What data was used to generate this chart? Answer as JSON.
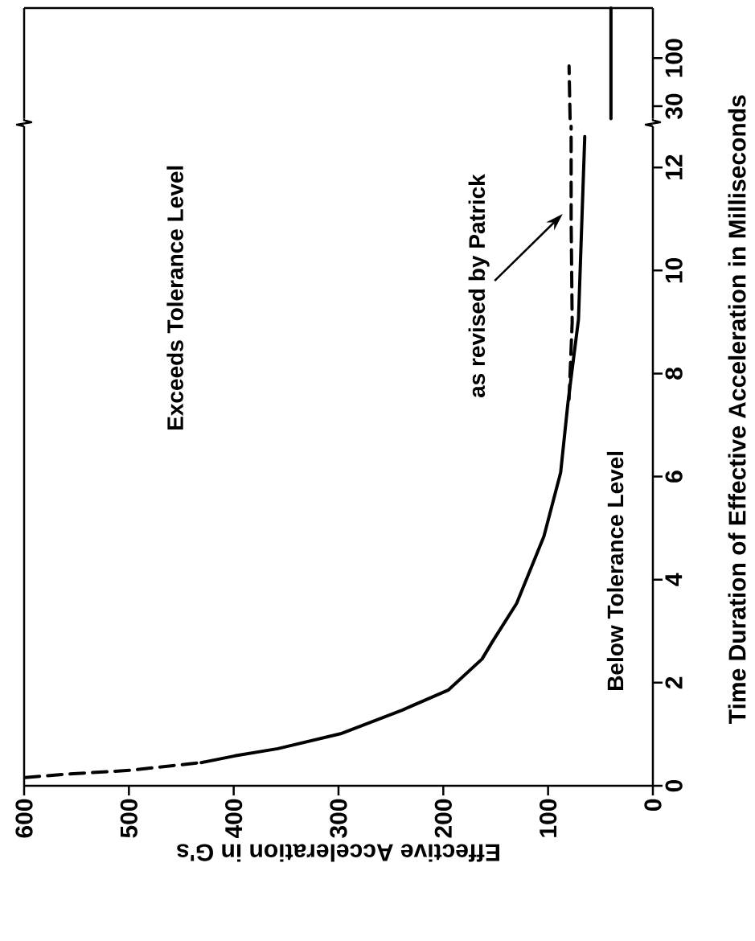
{
  "chart_data": [
    {
      "type": "line",
      "xlabel": "Effective Acceleration in G's",
      "ylabel": "Time Duration of Effective Acceleration in Milliseconds",
      "xlim": [
        600,
        0
      ],
      "xticks": [
        600,
        500,
        400,
        300,
        200,
        100,
        0
      ],
      "ylim": [
        0,
        12.8
      ],
      "yticks": [
        0,
        2,
        4,
        6,
        8,
        10,
        12
      ],
      "series": [
        {
          "color": "#000000",
          "line_style": "dashed",
          "x": [
            599,
            564,
            499,
            458,
            431
          ],
          "values": [
            0.16,
            0.22,
            0.3,
            0.39,
            0.45
          ]
        },
        {
          "color": "#000000",
          "line_style": "solid",
          "x": [
            431,
            399,
            358,
            298,
            239,
            195,
            163,
            153,
            130,
            104,
            88,
            81,
            71,
            65
          ],
          "values": [
            0.45,
            0.58,
            0.72,
            1.01,
            1.47,
            1.86,
            2.46,
            2.8,
            3.54,
            4.84,
            6.08,
            7.44,
            9.05,
            12.6
          ]
        },
        {
          "color": "#000000",
          "line_style": "dashed",
          "x": [
            80,
            77,
            78,
            78
          ],
          "values": [
            7.5,
            9,
            11,
            12.8
          ]
        }
      ],
      "annotations": [
        "Exceeds Tolerance Level",
        "Below Tolerance Level",
        "as revised by Patrick"
      ]
    },
    {
      "type": "line",
      "log": "y",
      "xlim": [
        600,
        0
      ],
      "ylim": [
        22,
        350
      ],
      "yticks": [
        30,
        100
      ],
      "tick_labels": "y",
      "series": [
        {
          "color": "#000000",
          "line_style": "solid",
          "x": [
            40,
            40
          ],
          "values": [
            22,
            350
          ]
        },
        {
          "color": "#000000",
          "line_style": "dashed",
          "x": [
            79,
            80
          ],
          "values": [
            22,
            82
          ]
        }
      ]
    }
  ]
}
